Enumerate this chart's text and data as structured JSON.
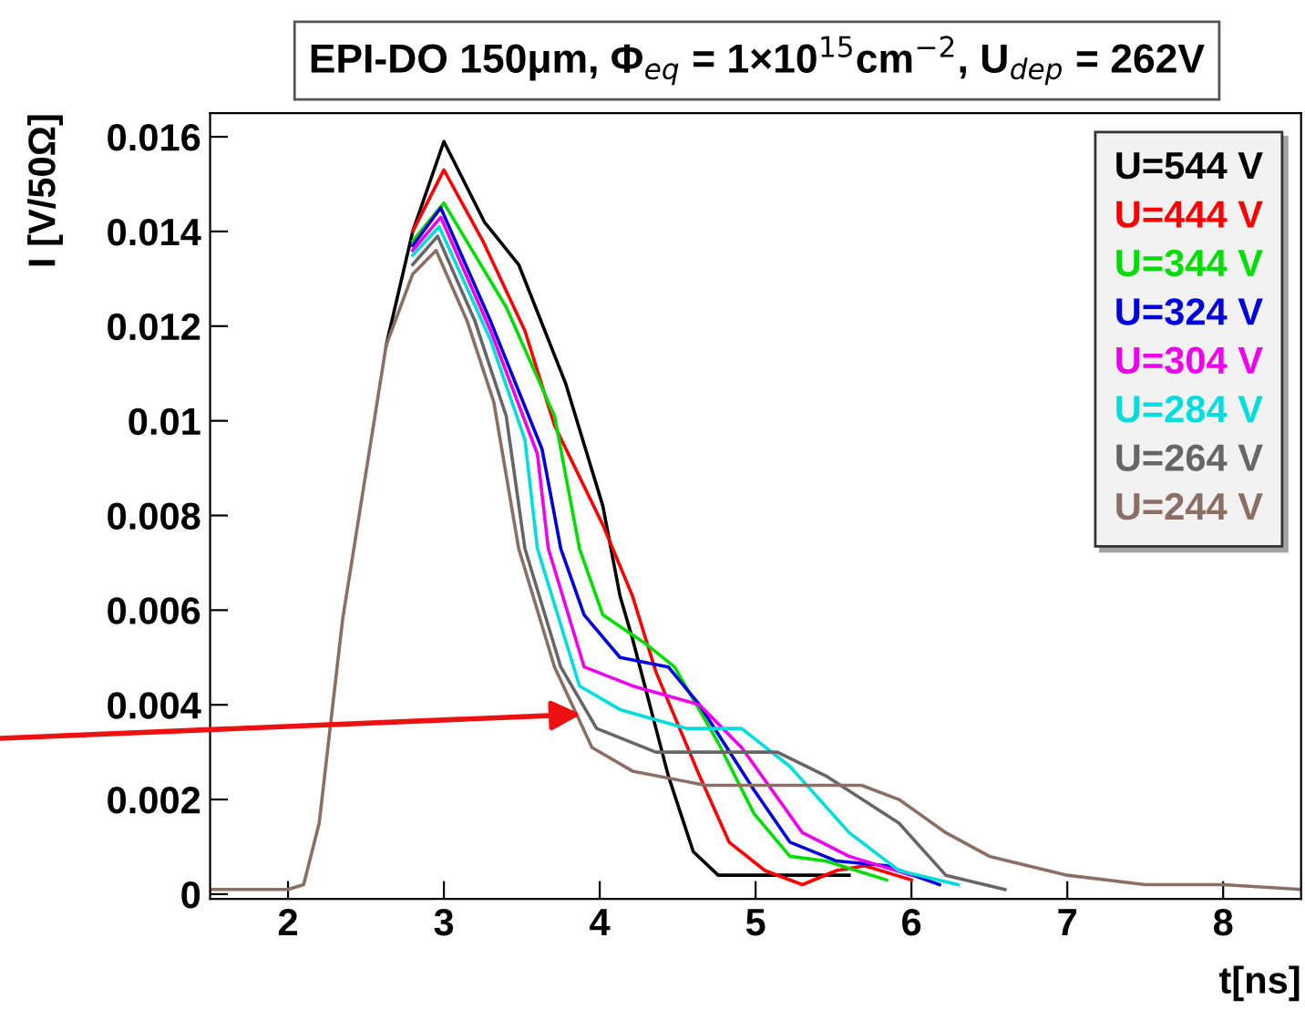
{
  "chart_data": {
    "type": "line",
    "title": "EPI-DO 150μm, Φ$_{eq}$ = 1×10$^{15}$cm$^{−2}$, U$_{dep}$ = 262V",
    "xlabel": "t[ns]",
    "ylabel": "I [V/50Ω]",
    "xlim": [
      1.5,
      8.5
    ],
    "ylim": [
      -0.0001,
      0.0165
    ],
    "xticks": [
      2,
      3,
      4,
      5,
      6,
      7,
      8
    ],
    "yticks": [
      0,
      0.002,
      0.004,
      0.006,
      0.008,
      0.01,
      0.012,
      0.014,
      0.016
    ],
    "grid": false,
    "legend": "top right",
    "line_style": "solid",
    "marker": "none",
    "series": [
      {
        "name": "U=544 V",
        "color": "#000000",
        "x": [
          2.63,
          2.8,
          3.0,
          3.26,
          3.48,
          3.78,
          4.02,
          4.13,
          4.21,
          4.44,
          4.6,
          4.76,
          5.3,
          5.6
        ],
        "values": [
          0.0116,
          0.014,
          0.0159,
          0.0142,
          0.0133,
          0.0108,
          0.0082,
          0.0063,
          0.0054,
          0.0025,
          0.0009,
          0.0004,
          0.0004,
          0.0004
        ]
      },
      {
        "name": "U=444 V",
        "color": "#ff0000",
        "x": [
          2.8,
          3.0,
          3.25,
          3.52,
          3.71,
          4.02,
          4.21,
          4.36,
          4.64,
          4.83,
          5.06,
          5.3,
          5.52,
          5.7,
          6.0
        ],
        "values": [
          0.014,
          0.0153,
          0.0138,
          0.0119,
          0.0099,
          0.0078,
          0.0063,
          0.0047,
          0.0025,
          0.0011,
          0.0005,
          0.0002,
          0.0005,
          0.0006,
          0.0003
        ]
      },
      {
        "name": "U=344 V",
        "color": "#00dd00",
        "x": [
          2.8,
          3.0,
          3.4,
          3.71,
          3.87,
          4.02,
          4.29,
          4.48,
          4.76,
          4.99,
          5.22,
          5.45,
          5.84
        ],
        "values": [
          0.0138,
          0.0146,
          0.0124,
          0.0101,
          0.0073,
          0.0059,
          0.0053,
          0.0048,
          0.0032,
          0.0017,
          0.0008,
          0.0007,
          0.0003
        ]
      },
      {
        "name": "U=324 V",
        "color": "#0000dd",
        "x": [
          2.8,
          2.98,
          3.3,
          3.63,
          3.75,
          3.9,
          4.13,
          4.44,
          4.64,
          4.99,
          5.22,
          5.52,
          5.84,
          6.18
        ],
        "values": [
          0.0137,
          0.0145,
          0.0121,
          0.0094,
          0.0073,
          0.0059,
          0.005,
          0.0048,
          0.004,
          0.0022,
          0.0011,
          0.0007,
          0.0006,
          0.0002
        ]
      },
      {
        "name": "U=304 V",
        "color": "#ee00ee",
        "x": [
          2.8,
          2.98,
          3.3,
          3.6,
          3.67,
          3.9,
          4.21,
          4.64,
          4.91,
          5.3,
          5.6,
          6.0
        ],
        "values": [
          0.0136,
          0.0143,
          0.0119,
          0.0093,
          0.0073,
          0.0048,
          0.0044,
          0.004,
          0.0031,
          0.0013,
          0.0008,
          0.0004
        ]
      },
      {
        "name": "U=284 V",
        "color": "#00dddd",
        "x": [
          2.8,
          2.97,
          3.3,
          3.52,
          3.6,
          3.87,
          4.13,
          4.56,
          4.91,
          5.22,
          5.6,
          5.92,
          6.3
        ],
        "values": [
          0.0135,
          0.0141,
          0.0117,
          0.0096,
          0.0073,
          0.0044,
          0.0039,
          0.0035,
          0.0035,
          0.0027,
          0.0013,
          0.0005,
          0.0002
        ]
      },
      {
        "name": "U=264 V",
        "color": "#666666",
        "x": [
          2.8,
          2.96,
          3.2,
          3.4,
          3.52,
          3.75,
          3.98,
          4.36,
          5.14,
          5.45,
          5.92,
          6.22,
          6.6
        ],
        "values": [
          0.0133,
          0.0139,
          0.0121,
          0.0101,
          0.0073,
          0.0048,
          0.0035,
          0.003,
          0.003,
          0.0025,
          0.0015,
          0.0004,
          0.0001
        ]
      },
      {
        "name": "U=244 V",
        "color": "#8b6e64",
        "x": [
          1.5,
          2.0,
          2.1,
          2.2,
          2.35,
          2.63,
          2.8,
          2.95,
          3.15,
          3.32,
          3.48,
          3.71,
          3.95,
          4.21,
          4.68,
          5.68,
          5.92,
          6.22,
          6.5,
          7.0,
          7.5,
          8.0,
          8.5
        ],
        "values": [
          0.0001,
          0.0001,
          0.0002,
          0.0015,
          0.0058,
          0.0116,
          0.0131,
          0.0136,
          0.0121,
          0.0104,
          0.0073,
          0.0048,
          0.0031,
          0.0026,
          0.0023,
          0.0023,
          0.002,
          0.0013,
          0.0008,
          0.0004,
          0.0002,
          0.0002,
          0.0001
        ]
      }
    ]
  }
}
